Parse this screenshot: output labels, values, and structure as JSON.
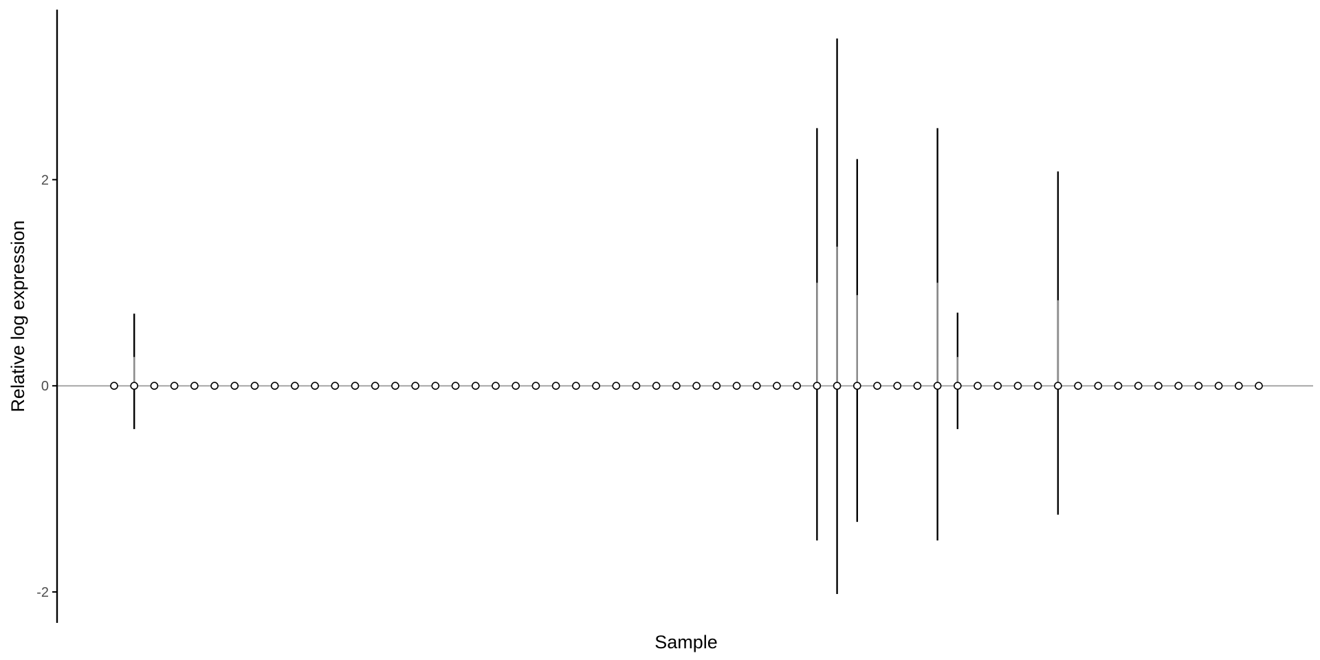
{
  "chart_data": {
    "type": "boxplot",
    "title": "",
    "xlabel": "Sample",
    "ylabel": "Relative log expression",
    "ylim": [
      -2.3,
      3.65
    ],
    "yticks": [
      -2,
      0,
      2
    ],
    "ytick_labels": [
      "-2",
      "0",
      "2"
    ],
    "x_tick_labels_visible": false,
    "grid": false,
    "legend": "none",
    "n_samples": 58,
    "reference_line_y": 0,
    "samples": [
      {
        "index": 1,
        "lower": 0,
        "q3": 0,
        "upper": 0
      },
      {
        "index": 2,
        "lower": -0.42,
        "q3": 0.28,
        "upper": 0.7
      },
      {
        "index": 3,
        "lower": 0,
        "q3": 0,
        "upper": 0
      },
      {
        "index": 4,
        "lower": 0,
        "q3": 0,
        "upper": 0
      },
      {
        "index": 5,
        "lower": 0,
        "q3": 0,
        "upper": 0
      },
      {
        "index": 6,
        "lower": 0,
        "q3": 0,
        "upper": 0
      },
      {
        "index": 7,
        "lower": 0,
        "q3": 0,
        "upper": 0
      },
      {
        "index": 8,
        "lower": 0,
        "q3": 0,
        "upper": 0
      },
      {
        "index": 9,
        "lower": 0,
        "q3": 0,
        "upper": 0
      },
      {
        "index": 10,
        "lower": 0,
        "q3": 0,
        "upper": 0
      },
      {
        "index": 11,
        "lower": 0,
        "q3": 0,
        "upper": 0
      },
      {
        "index": 12,
        "lower": 0,
        "q3": 0,
        "upper": 0
      },
      {
        "index": 13,
        "lower": 0,
        "q3": 0,
        "upper": 0
      },
      {
        "index": 14,
        "lower": 0,
        "q3": 0,
        "upper": 0
      },
      {
        "index": 15,
        "lower": 0,
        "q3": 0,
        "upper": 0
      },
      {
        "index": 16,
        "lower": 0,
        "q3": 0,
        "upper": 0
      },
      {
        "index": 17,
        "lower": 0,
        "q3": 0,
        "upper": 0
      },
      {
        "index": 18,
        "lower": 0,
        "q3": 0,
        "upper": 0
      },
      {
        "index": 19,
        "lower": 0,
        "q3": 0,
        "upper": 0
      },
      {
        "index": 20,
        "lower": 0,
        "q3": 0,
        "upper": 0
      },
      {
        "index": 21,
        "lower": 0,
        "q3": 0,
        "upper": 0
      },
      {
        "index": 22,
        "lower": 0,
        "q3": 0,
        "upper": 0
      },
      {
        "index": 23,
        "lower": 0,
        "q3": 0,
        "upper": 0
      },
      {
        "index": 24,
        "lower": 0,
        "q3": 0,
        "upper": 0
      },
      {
        "index": 25,
        "lower": 0,
        "q3": 0,
        "upper": 0
      },
      {
        "index": 26,
        "lower": 0,
        "q3": 0,
        "upper": 0
      },
      {
        "index": 27,
        "lower": 0,
        "q3": 0,
        "upper": 0
      },
      {
        "index": 28,
        "lower": 0,
        "q3": 0,
        "upper": 0
      },
      {
        "index": 29,
        "lower": 0,
        "q3": 0,
        "upper": 0
      },
      {
        "index": 30,
        "lower": 0,
        "q3": 0,
        "upper": 0
      },
      {
        "index": 31,
        "lower": 0,
        "q3": 0,
        "upper": 0
      },
      {
        "index": 32,
        "lower": 0,
        "q3": 0,
        "upper": 0
      },
      {
        "index": 33,
        "lower": 0,
        "q3": 0,
        "upper": 0
      },
      {
        "index": 34,
        "lower": 0,
        "q3": 0,
        "upper": 0
      },
      {
        "index": 35,
        "lower": 0,
        "q3": 0,
        "upper": 0
      },
      {
        "index": 36,
        "lower": -1.5,
        "q3": 1.0,
        "upper": 2.5
      },
      {
        "index": 37,
        "lower": -2.02,
        "q3": 1.35,
        "upper": 3.37
      },
      {
        "index": 38,
        "lower": -1.32,
        "q3": 0.88,
        "upper": 2.2
      },
      {
        "index": 39,
        "lower": 0,
        "q3": 0,
        "upper": 0
      },
      {
        "index": 40,
        "lower": 0,
        "q3": 0,
        "upper": 0
      },
      {
        "index": 41,
        "lower": 0,
        "q3": 0,
        "upper": 0
      },
      {
        "index": 42,
        "lower": -1.5,
        "q3": 1.0,
        "upper": 2.5
      },
      {
        "index": 43,
        "lower": -0.42,
        "q3": 0.28,
        "upper": 0.71
      },
      {
        "index": 44,
        "lower": 0,
        "q3": 0,
        "upper": 0
      },
      {
        "index": 45,
        "lower": 0,
        "q3": 0,
        "upper": 0
      },
      {
        "index": 46,
        "lower": 0,
        "q3": 0,
        "upper": 0
      },
      {
        "index": 47,
        "lower": 0,
        "q3": 0,
        "upper": 0
      },
      {
        "index": 48,
        "lower": -1.25,
        "q3": 0.83,
        "upper": 2.08
      },
      {
        "index": 49,
        "lower": 0,
        "q3": 0,
        "upper": 0
      },
      {
        "index": 50,
        "lower": 0,
        "q3": 0,
        "upper": 0
      },
      {
        "index": 51,
        "lower": 0,
        "q3": 0,
        "upper": 0
      },
      {
        "index": 52,
        "lower": 0,
        "q3": 0,
        "upper": 0
      },
      {
        "index": 53,
        "lower": 0,
        "q3": 0,
        "upper": 0
      },
      {
        "index": 54,
        "lower": 0,
        "q3": 0,
        "upper": 0
      },
      {
        "index": 55,
        "lower": 0,
        "q3": 0,
        "upper": 0
      },
      {
        "index": 56,
        "lower": 0,
        "q3": 0,
        "upper": 0
      },
      {
        "index": 57,
        "lower": 0,
        "q3": 0,
        "upper": 0
      },
      {
        "index": 58,
        "lower": 0,
        "q3": 0,
        "upper": 0
      }
    ],
    "colors": {
      "whisker": "#000000",
      "box": "#8c8c8c",
      "reference_line": "#a6a6a6",
      "median_marker_stroke": "#000000",
      "median_marker_fill": "#ffffff",
      "axis": "#000000"
    }
  }
}
